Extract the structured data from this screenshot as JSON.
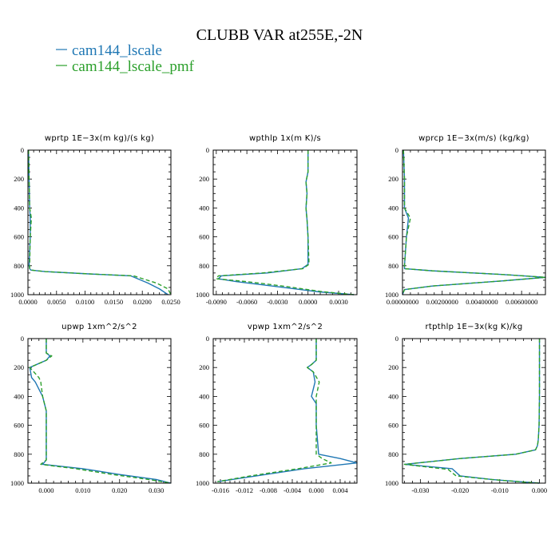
{
  "figure": {
    "title": "CLUBB VAR at255E,-2N",
    "legend": [
      {
        "label": "cam144_lscale",
        "color": "#1f77b4"
      },
      {
        "label": "cam144_lscale_pmf",
        "color": "#2ca02c"
      }
    ]
  },
  "chart_data": [
    {
      "type": "line",
      "title": "wprtp   1E−3x(m kg)/(s kg)",
      "xlim": [
        0.0,
        0.025
      ],
      "ylim": [
        1000,
        0
      ],
      "xticks": [
        0.0,
        0.005,
        0.01,
        0.015,
        0.02,
        0.025
      ],
      "xtick_labels": [
        "0.0000",
        "0.0050",
        "0.0100",
        "0.0150",
        "0.0200",
        "0.0250"
      ],
      "yticks": [
        0,
        200,
        400,
        600,
        800,
        1000
      ],
      "ytick_labels": [
        "0",
        "200",
        "400",
        "600",
        "800",
        "1000"
      ],
      "series": [
        {
          "name": "cam144_lscale",
          "color": "#1f77b4",
          "dash": "solid",
          "x": [
            0.0001,
            0.0002,
            0.0003,
            0.0004,
            0.0004,
            0.0002,
            0.0003,
            0.0005,
            0.003,
            0.01,
            0.018,
            0.021,
            0.023,
            0.0245
          ],
          "y": [
            0,
            200,
            400,
            470,
            600,
            800,
            820,
            830,
            840,
            855,
            870,
            920,
            960,
            1000
          ]
        },
        {
          "name": "cam144_lscale_pmf",
          "color": "#2ca02c",
          "dash": "5,3",
          "x": [
            0.0001,
            0.0002,
            0.0003,
            0.0006,
            0.0004,
            0.0003,
            0.0003,
            0.0005,
            0.003,
            0.01,
            0.0185,
            0.0225,
            0.0245,
            0.025
          ],
          "y": [
            0,
            200,
            400,
            470,
            600,
            800,
            820,
            830,
            840,
            855,
            870,
            920,
            960,
            1000
          ]
        }
      ]
    },
    {
      "type": "line",
      "title": "wpthlp   1x(m K)/s",
      "xlim": [
        -0.0093,
        0.0048
      ],
      "ylim": [
        1000,
        0
      ],
      "xticks": [
        -0.009,
        -0.006,
        -0.003,
        0.0,
        0.003
      ],
      "xtick_labels": [
        "-0.0090",
        "-0.0060",
        "-0.0030",
        "0.0000",
        "0.0030"
      ],
      "yticks": [
        0,
        200,
        400,
        600,
        800,
        1000
      ],
      "ytick_labels": [
        "0",
        "200",
        "400",
        "600",
        "800",
        "1000"
      ],
      "series": [
        {
          "name": "cam144_lscale",
          "color": "#1f77b4",
          "dash": "solid",
          "x": [
            0.0,
            0.0,
            -0.0002,
            -0.0001,
            -0.0002,
            -0.0001,
            0.0,
            0.0,
            -0.0006,
            -0.004,
            -0.0085,
            -0.0088,
            -0.007,
            -0.0035,
            0.001,
            0.0045
          ],
          "y": [
            0,
            150,
            220,
            300,
            400,
            480,
            600,
            790,
            820,
            850,
            870,
            890,
            910,
            940,
            980,
            1000
          ]
        },
        {
          "name": "cam144_lscale_pmf",
          "color": "#2ca02c",
          "dash": "5,3",
          "x": [
            0.0,
            0.0,
            -0.0002,
            -0.0001,
            -0.0002,
            -0.0001,
            0.0,
            0.0001,
            -0.0005,
            -0.0045,
            -0.0088,
            -0.009,
            -0.006,
            -0.0025,
            0.0015,
            0.0045
          ],
          "y": [
            0,
            150,
            220,
            300,
            400,
            480,
            600,
            790,
            820,
            850,
            870,
            890,
            910,
            940,
            980,
            1000
          ]
        }
      ]
    },
    {
      "type": "line",
      "title": "wprcp   1E−3x(m/s) (kg/kg)",
      "xlim": [
        0.0,
        0.0072
      ],
      "ylim": [
        1000,
        0
      ],
      "xticks": [
        0.0,
        0.002,
        0.004,
        0.006
      ],
      "xtick_labels": [
        "0.00000000",
        "0.00200000",
        "0.00400000",
        "0.00600000"
      ],
      "yticks": [
        0,
        200,
        400,
        600,
        800,
        1000
      ],
      "ytick_labels": [
        "0",
        "200",
        "400",
        "600",
        "800",
        "1000"
      ],
      "series": [
        {
          "name": "cam144_lscale",
          "color": "#1f77b4",
          "dash": "solid",
          "x": [
            5e-05,
            0.0001,
            0.0001,
            0.0003,
            0.0002,
            0.0001,
            0.0001,
            0.0015,
            0.005,
            0.0072,
            0.005,
            0.0015,
            0.0001,
            0.0
          ],
          "y": [
            0,
            200,
            400,
            470,
            600,
            800,
            820,
            835,
            860,
            880,
            905,
            940,
            965,
            1000
          ]
        },
        {
          "name": "cam144_lscale_pmf",
          "color": "#2ca02c",
          "dash": "5,3",
          "x": [
            5e-05,
            0.0001,
            0.0001,
            0.0004,
            0.0002,
            0.0001,
            0.0001,
            0.0015,
            0.005,
            0.0072,
            0.005,
            0.0015,
            0.0001,
            0.0
          ],
          "y": [
            0,
            200,
            400,
            470,
            600,
            800,
            820,
            835,
            860,
            880,
            905,
            940,
            965,
            1000
          ]
        }
      ]
    },
    {
      "type": "line",
      "title": "upwp   1xm^2/s^2",
      "xlim": [
        -0.005,
        0.034
      ],
      "ylim": [
        1000,
        0
      ],
      "xticks": [
        0.0,
        0.01,
        0.02,
        0.03
      ],
      "xtick_labels": [
        "0.000",
        "0.010",
        "0.020",
        "0.030"
      ],
      "yticks": [
        0,
        200,
        400,
        600,
        800,
        1000
      ],
      "ytick_labels": [
        "0",
        "200",
        "400",
        "600",
        "800",
        "1000"
      ],
      "series": [
        {
          "name": "cam144_lscale",
          "color": "#1f77b4",
          "dash": "solid",
          "x": [
            0.0,
            0.0,
            0.001,
            0.0,
            -0.0045,
            -0.004,
            -0.003,
            -0.001,
            0.0,
            0.0,
            0.0,
            0.0,
            -0.001,
            0.01,
            0.02,
            0.03,
            0.034
          ],
          "y": [
            0,
            100,
            120,
            150,
            200,
            270,
            300,
            400,
            500,
            600,
            800,
            840,
            870,
            900,
            940,
            975,
            1000
          ]
        },
        {
          "name": "cam144_lscale_pmf",
          "color": "#2ca02c",
          "dash": "5,3",
          "x": [
            0.0,
            0.0,
            0.0015,
            0.0,
            -0.0045,
            -0.002,
            -0.0015,
            -0.001,
            0.0,
            0.0,
            0.0,
            0.0,
            -0.0015,
            0.008,
            0.018,
            0.028,
            0.034
          ],
          "y": [
            0,
            100,
            120,
            150,
            200,
            270,
            300,
            400,
            500,
            600,
            800,
            840,
            870,
            900,
            940,
            975,
            1000
          ]
        }
      ]
    },
    {
      "type": "line",
      "title": "vpwp   1xm^2/s^2",
      "xlim": [
        -0.0172,
        0.0068
      ],
      "ylim": [
        1000,
        0
      ],
      "xticks": [
        -0.016,
        -0.012,
        -0.008,
        -0.004,
        0.0,
        0.004
      ],
      "xtick_labels": [
        "-0.016",
        "-0.012",
        "-0.008",
        "-0.004",
        "0.000",
        "0.004"
      ],
      "yticks": [
        0,
        200,
        400,
        600,
        800,
        1000
      ],
      "ytick_labels": [
        "0",
        "200",
        "400",
        "600",
        "800",
        "1000"
      ],
      "series": [
        {
          "name": "cam144_lscale",
          "color": "#1f77b4",
          "dash": "solid",
          "x": [
            0.0,
            0.0,
            -0.0008,
            -0.0015,
            -0.0005,
            -0.0002,
            -0.0008,
            0.0,
            0.0,
            0.0004,
            0.004,
            0.0068,
            -0.002,
            -0.01,
            -0.0165
          ],
          "y": [
            0,
            150,
            180,
            200,
            230,
            300,
            400,
            450,
            600,
            800,
            830,
            860,
            900,
            950,
            990
          ]
        },
        {
          "name": "cam144_lscale_pmf",
          "color": "#2ca02c",
          "dash": "5,3",
          "x": [
            0.0,
            0.0,
            -0.0008,
            -0.0015,
            -0.0005,
            0.0005,
            0.0,
            0.0,
            0.0,
            0.0,
            0.001,
            0.0025,
            -0.003,
            -0.011,
            -0.0165
          ],
          "y": [
            0,
            150,
            180,
            200,
            230,
            300,
            400,
            450,
            600,
            800,
            830,
            860,
            900,
            950,
            990
          ]
        }
      ]
    },
    {
      "type": "line",
      "title": "rtpthlp   1E−3x(kg K)/kg",
      "xlim": [
        -0.0345,
        0.0015
      ],
      "ylim": [
        1000,
        0
      ],
      "xticks": [
        -0.03,
        -0.02,
        -0.01,
        0.0
      ],
      "xtick_labels": [
        "-0.030",
        "-0.020",
        "-0.010",
        "0.000"
      ],
      "yticks": [
        0,
        200,
        400,
        600,
        800,
        1000
      ],
      "ytick_labels": [
        "0",
        "200",
        "400",
        "600",
        "800",
        "1000"
      ],
      "series": [
        {
          "name": "cam144_lscale",
          "color": "#1f77b4",
          "dash": "solid",
          "x": [
            0.0,
            0.0,
            -0.0001,
            -0.0003,
            -0.0005,
            -0.001,
            -0.006,
            -0.02,
            -0.034,
            -0.022,
            -0.02,
            -0.012,
            -0.005,
            0.0
          ],
          "y": [
            0,
            400,
            600,
            700,
            740,
            770,
            800,
            830,
            870,
            900,
            950,
            975,
            990,
            1000
          ]
        },
        {
          "name": "cam144_lscale_pmf",
          "color": "#2ca02c",
          "dash": "5,3",
          "x": [
            0.0,
            0.0,
            -0.0001,
            -0.0003,
            -0.0005,
            -0.001,
            -0.006,
            -0.02,
            -0.034,
            -0.023,
            -0.021,
            -0.012,
            -0.005,
            0.0
          ],
          "y": [
            0,
            400,
            600,
            700,
            740,
            770,
            800,
            830,
            870,
            905,
            950,
            975,
            990,
            1000
          ]
        }
      ]
    }
  ]
}
